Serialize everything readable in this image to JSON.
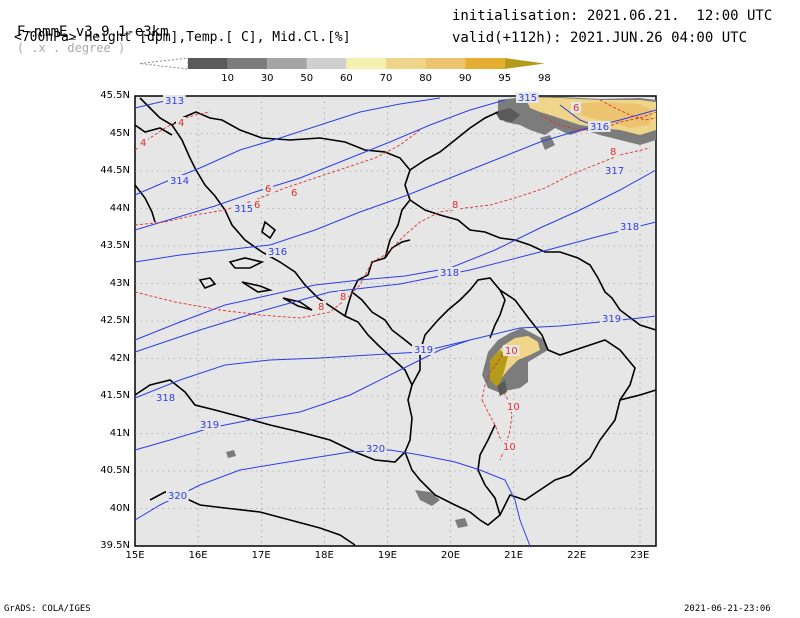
{
  "header": {
    "model": "F-nmmE_v3.9.1-e3km",
    "unit_hint": "( .x . degree )",
    "fields": "<700hPa> Height [dpm],Temp.[ C], Mid.Cl.[%]",
    "init": "initialisation: 2021.06.21.  12:00 UTC",
    "valid": "valid(+112h): 2021.JUN.26 04:00 UTC"
  },
  "colorbar": {
    "labels": [
      "10",
      "30",
      "50",
      "60",
      "70",
      "80",
      "90",
      "95",
      "98"
    ],
    "colors": [
      "#ffffff",
      "#5a5a5a",
      "#7c7c7c",
      "#a5a5a5",
      "#cfcfcf",
      "#f5efb0",
      "#efd58a",
      "#ecc470",
      "#e6ae30",
      "#b49b1a"
    ]
  },
  "axes": {
    "lat_labels": [
      "45.5N",
      "45N",
      "44.5N",
      "44N",
      "43.5N",
      "43N",
      "42.5N",
      "42N",
      "41.5N",
      "41N",
      "40.5N",
      "40N",
      "39.5N"
    ],
    "lon_labels": [
      "15E",
      "16E",
      "17E",
      "18E",
      "19E",
      "20E",
      "21E",
      "22E",
      "23E"
    ]
  },
  "contours": {
    "height_labels": [
      "313",
      "314",
      "315",
      "316",
      "317",
      "318",
      "316",
      "318",
      "319",
      "318",
      "319",
      "319",
      "320",
      "320",
      "315"
    ],
    "temp_labels": [
      "4",
      "4",
      "6",
      "6",
      "6",
      "8",
      "8",
      "8",
      "6",
      "8",
      "10",
      "10",
      "10"
    ]
  },
  "footer": {
    "left": "GrADS: COLA/IGES",
    "right": "2021-06-21-23:06"
  },
  "style": {
    "height_color": "#2d3fe6",
    "temp_color": "#e03030",
    "land_fill": "#e6e6e6",
    "coast_color": "#000000"
  }
}
